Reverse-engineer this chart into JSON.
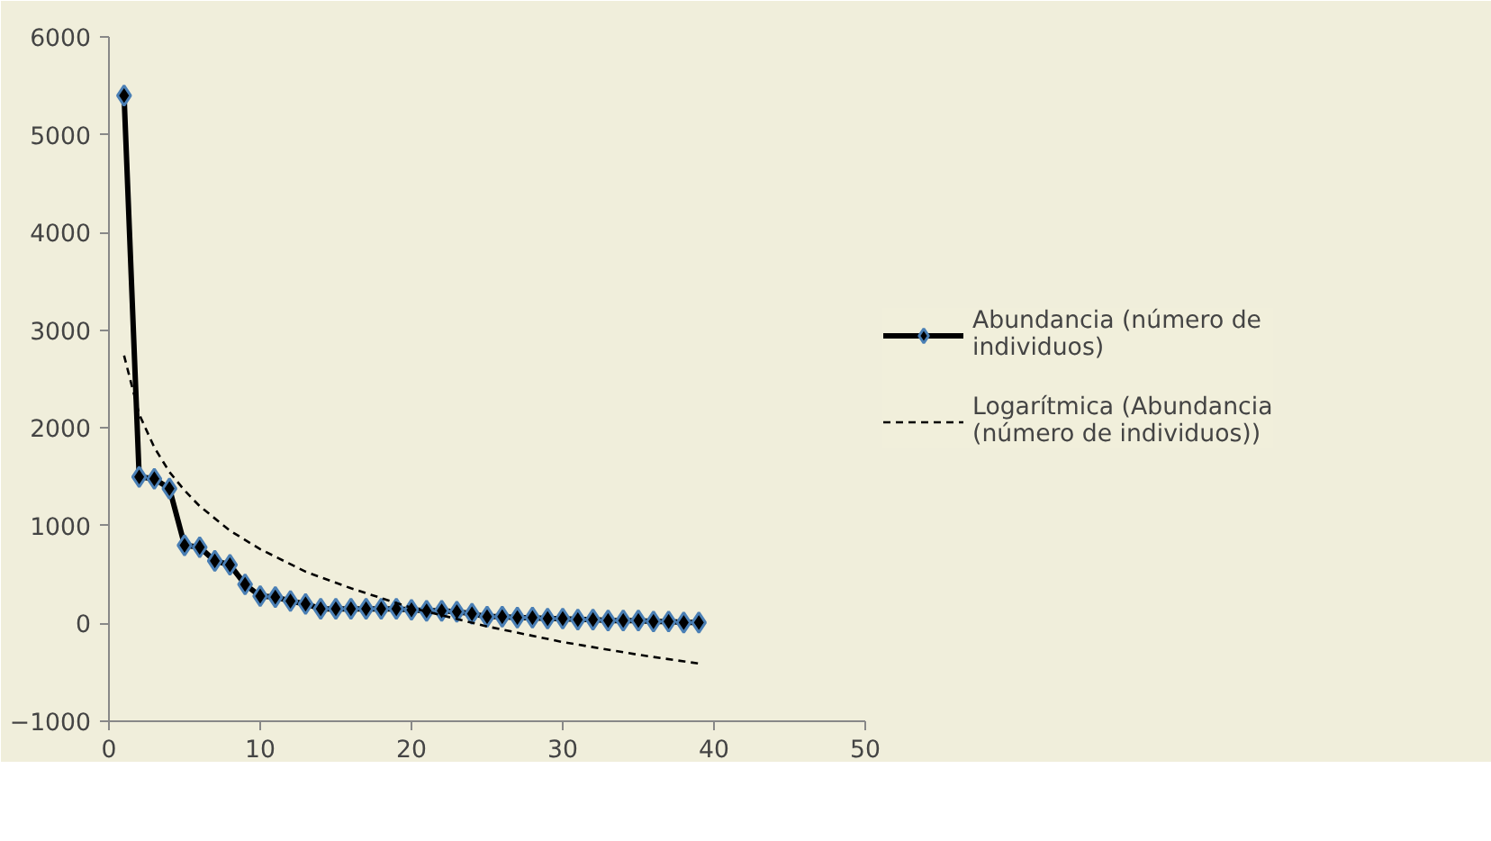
{
  "chart_data": {
    "type": "line",
    "x": [
      1,
      2,
      3,
      4,
      5,
      6,
      7,
      8,
      9,
      10,
      11,
      12,
      13,
      14,
      15,
      16,
      17,
      18,
      19,
      20,
      21,
      22,
      23,
      24,
      25,
      26,
      27,
      28,
      29,
      30,
      31,
      32,
      33,
      34,
      35,
      36,
      37,
      38,
      39
    ],
    "series": [
      {
        "name": "Abundancia (número de individuos)",
        "color": "#000000",
        "marker": "diamond",
        "line_style": "solid",
        "values": [
          5400,
          1500,
          1480,
          1380,
          800,
          780,
          640,
          600,
          400,
          280,
          270,
          230,
          200,
          150,
          150,
          150,
          150,
          150,
          150,
          140,
          130,
          130,
          120,
          100,
          70,
          70,
          60,
          60,
          50,
          50,
          40,
          40,
          30,
          30,
          30,
          20,
          20,
          10,
          10
        ]
      },
      {
        "name": "Logarítmica (Abundancia (número de individuos))",
        "color": "#000000",
        "marker": "none",
        "line_style": "dashed",
        "x": [
          1,
          2,
          3,
          4,
          5,
          6,
          8,
          10,
          13,
          16,
          20,
          25,
          30,
          35,
          39
        ],
        "values": [
          2740,
          2140,
          1800,
          1550,
          1360,
          1200,
          950,
          760,
          530,
          360,
          160,
          -30,
          -190,
          -320,
          -410
        ]
      }
    ],
    "xlim": [
      0,
      50
    ],
    "xticks": [
      0,
      10,
      20,
      30,
      40,
      50
    ],
    "ylim": [
      -1000,
      6000
    ],
    "yticks": [
      -1000,
      0,
      1000,
      2000,
      3000,
      4000,
      5000,
      6000
    ],
    "grid": false,
    "legend": "right"
  }
}
